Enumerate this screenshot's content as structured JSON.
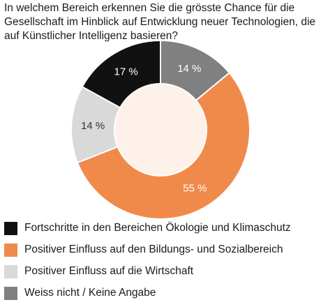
{
  "title": "In welchem Bereich erkennen Sie die grösste Chance für die Gesellschaft im Hinblick auf Entwicklung neuer Technologien, die auf Künstlicher Intelligenz basieren?",
  "chart_data": {
    "type": "pie",
    "title": "In welchem Bereich erkennen Sie die grösste Chance für die Gesellschaft im Hinblick auf Entwicklung neuer Technologien, die auf Künstlicher Intelligenz basieren?",
    "donut": true,
    "categories": [
      "Fortschritte in den Bereichen Ökologie und Klimaschutz",
      "Positiver Einfluss auf den Bildungs- und Sozialbereich",
      "Positiver Einfluss auf die Wirtschaft",
      "Weiss nicht / Keine Angabe"
    ],
    "values": [
      17,
      55,
      14,
      14
    ],
    "labels": [
      "17 %",
      "55 %",
      "14 %",
      "14 %"
    ],
    "colors": [
      "#111111",
      "#f08a4b",
      "#d9d9d9",
      "#808080"
    ],
    "label_colors": [
      "#ffffff",
      "#ffffff",
      "#333333",
      "#ffffff"
    ],
    "legend": "bottom"
  },
  "legend_items": [
    {
      "label": "Fortschritte in den Bereichen Ökologie und Klimaschutz",
      "color": "#111111"
    },
    {
      "label": "Positiver Einfluss auf den Bildungs- und Sozialbereich",
      "color": "#f08a4b"
    },
    {
      "label": "Positiver Einfluss auf die Wirtschaft",
      "color": "#d9d9d9"
    },
    {
      "label": "Weiss nicht / Keine Angabe",
      "color": "#808080"
    }
  ]
}
